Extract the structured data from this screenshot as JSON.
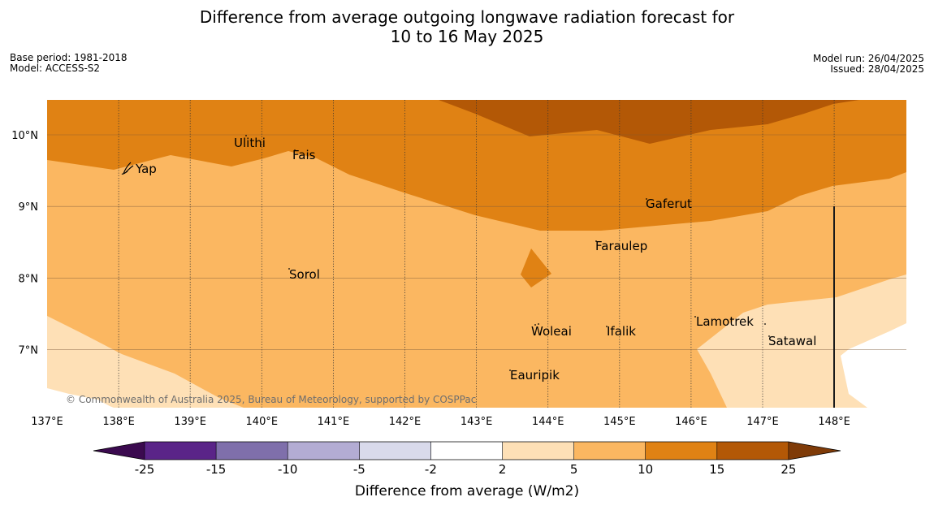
{
  "header": {
    "title_line1": "Difference from average outgoing longwave radiation forecast for",
    "title_line2": "10 to 16 May 2025",
    "base_period": "Base period: 1981-2018",
    "model": "Model: ACCESS-S2",
    "model_run": "Model run: 26/04/2025",
    "issued": "Issued: 28/04/2025"
  },
  "map": {
    "latitudes": [
      {
        "value": 10,
        "label": "10°N"
      },
      {
        "value": 9,
        "label": "9°N"
      },
      {
        "value": 8,
        "label": "8°N"
      },
      {
        "value": 7,
        "label": "7°N"
      }
    ],
    "longitudes": [
      {
        "value": 137,
        "label": "137°E"
      },
      {
        "value": 138,
        "label": "138°E"
      },
      {
        "value": 139,
        "label": "139°E"
      },
      {
        "value": 140,
        "label": "140°E"
      },
      {
        "value": 141,
        "label": "141°E"
      },
      {
        "value": 142,
        "label": "142°E"
      },
      {
        "value": 143,
        "label": "143°E"
      },
      {
        "value": 144,
        "label": "144°E"
      },
      {
        "value": 145,
        "label": "145°E"
      },
      {
        "value": 146,
        "label": "146°E"
      },
      {
        "value": 147,
        "label": "147°E"
      },
      {
        "value": 148,
        "label": "148°E"
      }
    ],
    "places": [
      {
        "name": "Yap"
      },
      {
        "name": "Ulithi"
      },
      {
        "name": "Fais"
      },
      {
        "name": "Gaferut"
      },
      {
        "name": "Faraulep"
      },
      {
        "name": "Sorol"
      },
      {
        "name": "Lamotrek"
      },
      {
        "name": "Woleai"
      },
      {
        "name": "Ifalik"
      },
      {
        "name": "Satawal"
      },
      {
        "name": "Eauripik"
      }
    ],
    "copyright": "© Commonwealth of Australia 2025, Bureau of Meteorology, supported by COSPPac"
  },
  "colorbar": {
    "title": "Difference from average (W/m2)",
    "ticks": [
      "-25",
      "-15",
      "-10",
      "-5",
      "-2",
      "2",
      "5",
      "10",
      "15",
      "25"
    ],
    "colors": {
      "below_min": "#3b0a4f",
      "bin_-25_-15": "#5a2488",
      "bin_-15_-10": "#7f6fab",
      "bin_-10_-5": "#b3acd3",
      "bin_-5_-2": "#d9daeb",
      "bin_-2_2": "#ffffff",
      "bin_2_5": "#fee0b6",
      "bin_5_10": "#fbb761",
      "bin_10_15": "#e08214",
      "bin_15_25": "#b35806",
      "above_max": "#7f3b08"
    }
  }
}
